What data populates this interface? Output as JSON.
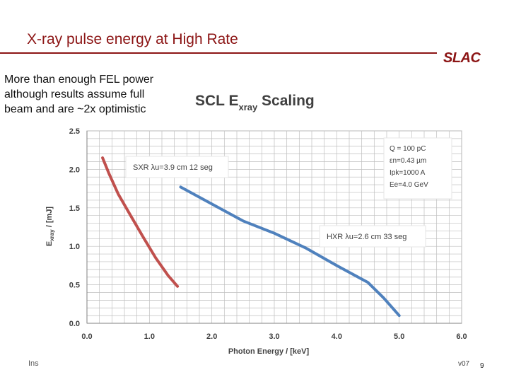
{
  "slide": {
    "title": "X-ray pulse energy at High Rate",
    "logo_text": "SLAC",
    "body_lines": [
      "More than enough FEL power",
      "although results assume full",
      "beam and are ~2x optimistic"
    ],
    "footer_left": "Ins",
    "version": "v07",
    "page_number": "9",
    "colors": {
      "title": "#8c1515",
      "sxr": "#c0504d",
      "hxr": "#4f81bd",
      "grid": "#bfbfbf"
    }
  },
  "chart_data": {
    "type": "line",
    "title": "SCL E",
    "title_subscript": "xray",
    "title_suffix": " Scaling",
    "xlabel": "Photon Energy / [keV]",
    "ylabel": "E",
    "ylabel_subscript": "xray",
    "ylabel_suffix": " / [mJ]",
    "xlim": [
      0,
      6
    ],
    "ylim": [
      0,
      2.5
    ],
    "xticks": [
      0,
      1,
      2,
      3,
      4,
      5,
      6
    ],
    "xtick_labels": [
      "0.0",
      "1.0",
      "2.0",
      "3.0",
      "4.0",
      "5.0",
      "6.0"
    ],
    "yticks": [
      0,
      0.5,
      1,
      1.5,
      2,
      2.5
    ],
    "ytick_labels": [
      "0.0",
      "0.5",
      "1.0",
      "1.5",
      "2.0",
      "2.5"
    ],
    "grid": true,
    "series": [
      {
        "name": "SXR",
        "label": "SXR  λu=3.9 cm 12 seg",
        "color": "#c0504d",
        "x": [
          0.25,
          0.35,
          0.5,
          0.7,
          0.9,
          1.1,
          1.3,
          1.45
        ],
        "y": [
          2.15,
          1.95,
          1.68,
          1.4,
          1.12,
          0.85,
          0.62,
          0.48
        ]
      },
      {
        "name": "HXR",
        "label": "HXR  λu=2.6 cm 33 seg",
        "color": "#4f81bd",
        "x": [
          1.5,
          2.0,
          2.5,
          3.0,
          3.5,
          4.0,
          4.5,
          4.75,
          5.0
        ],
        "y": [
          1.77,
          1.55,
          1.33,
          1.17,
          0.98,
          0.75,
          0.53,
          0.33,
          0.1
        ]
      }
    ],
    "annotation_box": [
      "Q = 100 pC",
      "εn=0.43 µm",
      "Ipk=1000 A",
      "Ee=4.0 GeV"
    ]
  }
}
